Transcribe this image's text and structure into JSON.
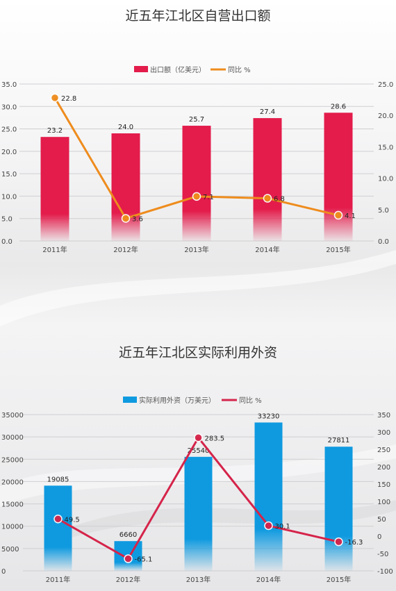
{
  "chart_data": [
    {
      "type": "bar",
      "title": "近五年江北区自营出口额",
      "categories": [
        "2011年",
        "2012年",
        "2013年",
        "2014年",
        "2015年"
      ],
      "series": [
        {
          "name": "出口额（亿美元）",
          "type": "bar",
          "axis": "left",
          "values": [
            23.2,
            24.0,
            25.7,
            27.4,
            28.6
          ],
          "color": "#e31c4b"
        },
        {
          "name": "同比  %",
          "type": "line",
          "axis": "right",
          "values": [
            22.8,
            3.6,
            7.1,
            6.8,
            4.1
          ],
          "color": "#ee8c1d"
        }
      ],
      "y_left": {
        "min": 0,
        "max": 35,
        "step": 5,
        "ticks": [
          "0.0",
          "5.0",
          "10.0",
          "15.0",
          "20.0",
          "25.0",
          "30.0",
          "35.0"
        ]
      },
      "y_right": {
        "min": 0,
        "max": 25,
        "step": 5,
        "ticks": [
          "0.0",
          "5.0",
          "10.0",
          "15.0",
          "20.0",
          "25.0"
        ]
      },
      "bar_labels": [
        "23.2",
        "24.0",
        "25.7",
        "27.4",
        "28.6"
      ],
      "line_labels": [
        "22.8",
        "3.6",
        "7.1",
        "6.8",
        "4.1"
      ],
      "grid": true,
      "legend": "top-center"
    },
    {
      "type": "bar",
      "title": "近五年江北区实际利用外资",
      "categories": [
        "2011年",
        "2012年",
        "2013年",
        "2014年",
        "2015年"
      ],
      "series": [
        {
          "name": "实际利用外资（万美元）",
          "type": "bar",
          "axis": "left",
          "values": [
            19085,
            6660,
            25540,
            33230,
            27811
          ],
          "color": "#0f9ae0"
        },
        {
          "name": "同比  %",
          "type": "line",
          "axis": "right",
          "values": [
            49.5,
            -65.1,
            283.5,
            30.1,
            -16.3
          ],
          "color": "#d5244a"
        }
      ],
      "y_left": {
        "min": 0,
        "max": 35000,
        "step": 5000,
        "ticks": [
          "0",
          "5000",
          "10000",
          "15000",
          "20000",
          "25000",
          "30000",
          "35000"
        ]
      },
      "y_right": {
        "min": -100,
        "max": 350,
        "step": 50,
        "ticks": [
          "-100",
          "-50",
          "0",
          "50",
          "100",
          "150",
          "200",
          "250",
          "300",
          "350"
        ]
      },
      "bar_labels": [
        "19085",
        "6660",
        "25540",
        "33230",
        "27811"
      ],
      "line_labels": [
        "49.5",
        "-65.1",
        "283.5",
        "30.1",
        "-16.3"
      ],
      "grid": true,
      "legend": "top-center"
    }
  ]
}
